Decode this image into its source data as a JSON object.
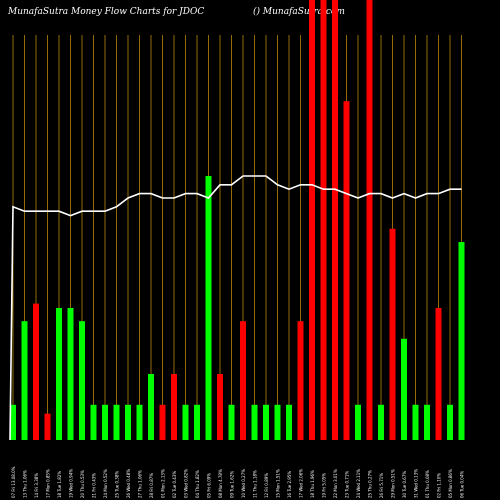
{
  "title": "MunafaSutra  Money Flow  Charts for JDOC",
  "brand": "() MunafaSutra.com",
  "colors": {
    "background": "#000000",
    "gridline": "#b8860b",
    "up": "#00ff00",
    "down": "#ff0000",
    "line": "#ffffff"
  },
  "chart_data": {
    "type": "bar",
    "grid": true,
    "ylim": [
      0,
      100
    ],
    "categories": [
      "07 Fri 13.08.0%",
      "13 Thu 1.06%",
      "14 Fri 3.38%",
      "17 Mon 0.85%",
      "18 Tue 1.82%",
      "19 Wed 0.94%",
      "20 Thu 0.53%",
      "21 Fri 0.43%",
      "24 Mon 0.52%",
      "25 Tue 0.38%",
      "26 Wed 0.48%",
      "27 Thu 1.06%",
      "28 Fri 0.87%",
      "01 Mon 2.13%",
      "02 Tue 0.43%",
      "03 Wed 0.82%",
      "04 Thu 1.82%",
      "05 Fri 6.09%",
      "08 Mon 4.78%",
      "09 Tue 1.62%",
      "10 Wed 0.27%",
      "11 Thu 1.18%",
      "12 Fri 0.89%",
      "15 Mon 1.51%",
      "16 Tue 2.95%",
      "17 Wed 2.06%",
      "18 Thu 1.96%",
      "19 Fri 5.05%",
      "22 Mon 3.01%",
      "23 Tue 0.71%",
      "24 Wed 2.11%",
      "25 Thu 0.27%",
      "26 Fri 5.71%",
      "29 Mon 0.51%",
      "30 Tue 0.67%",
      "31 Wed 0.13%",
      "01 Thu 0.08%",
      "02 Fri 1.10%",
      "05 Mon 0.86%",
      "06 Tue 0.04%"
    ],
    "series": [
      {
        "kind": "bars",
        "values": [
          8,
          27,
          31,
          6,
          30,
          30,
          27,
          8,
          8,
          8,
          8,
          8,
          15,
          8,
          15,
          8,
          8,
          60,
          15,
          8,
          27,
          8,
          8,
          8,
          8,
          27,
          100,
          100,
          100,
          77,
          8,
          100,
          8,
          48,
          23,
          8,
          8,
          30,
          8,
          45
        ],
        "colors": [
          "g",
          "g",
          "r",
          "r",
          "g",
          "g",
          "g",
          "g",
          "g",
          "g",
          "g",
          "g",
          "g",
          "r",
          "r",
          "g",
          "g",
          "g",
          "r",
          "g",
          "r",
          "g",
          "g",
          "g",
          "g",
          "r",
          "r",
          "r",
          "r",
          "r",
          "g",
          "r",
          "g",
          "r",
          "g",
          "g",
          "g",
          "r",
          "g",
          "g"
        ]
      },
      {
        "kind": "line",
        "values": [
          53,
          52,
          52,
          52,
          52,
          51,
          52,
          52,
          52,
          53,
          55,
          56,
          56,
          55,
          55,
          56,
          56,
          55,
          58,
          58,
          60,
          60,
          60,
          58,
          57,
          58,
          58,
          57,
          57,
          56,
          55,
          56,
          56,
          55,
          56,
          55,
          56,
          56,
          57,
          57
        ]
      }
    ]
  }
}
